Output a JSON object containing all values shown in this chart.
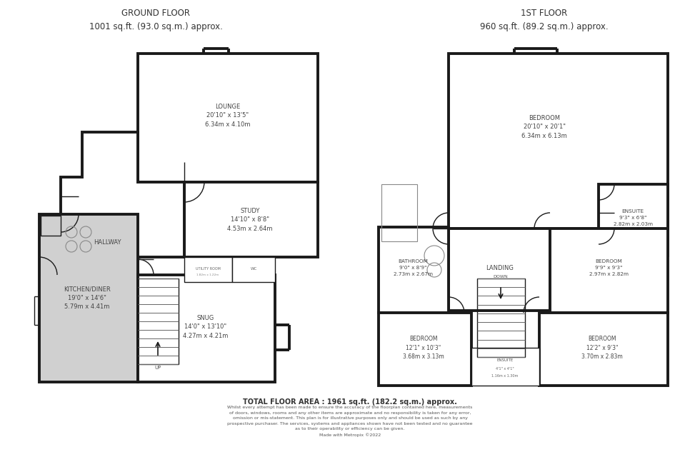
{
  "title_ground": "GROUND FLOOR\n1001 sq.ft. (93.0 sq.m.) approx.",
  "title_first": "1ST FLOOR\n960 sq.ft. (89.2 sq.m.) approx.",
  "total_area": "TOTAL FLOOR AREA : 1961 sq.ft. (182.2 sq.m.) approx.",
  "disclaimer": "Whilst every attempt has been made to ensure the accuracy of the floorplan contained here, measurements\nof doors, windows, rooms and any other items are approximate and no responsibility is taken for any error,\nomission or mis-statement. This plan is for illustrative purposes only and should be used as such by any\nprospective purchaser. The services, systems and appliances shown have not been tested and no guarantee\nas to their operability or efficiency can be given.\nMade with Metropix ©2022",
  "wall_color": "#1a1a1a",
  "bg_color": "#ffffff",
  "room_fill": "#ffffff",
  "kitchen_fill": "#d0d0d0",
  "wall_lw": 2.8,
  "thin_lw": 1.0,
  "scale": 10.0
}
